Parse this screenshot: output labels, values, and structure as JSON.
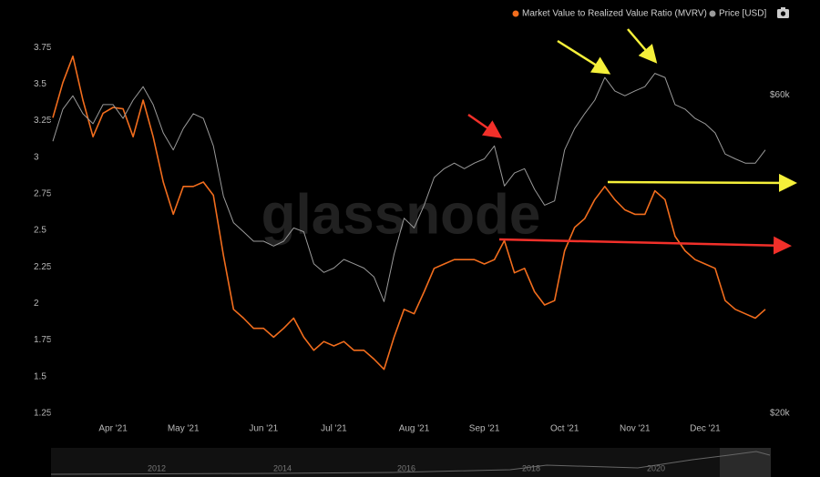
{
  "chart_data": {
    "type": "line",
    "watermark": "glassnode",
    "categories": [
      null,
      null,
      null,
      null,
      null,
      null,
      "Apr '21",
      null,
      null,
      null,
      null,
      null,
      null,
      "May '21",
      null,
      null,
      null,
      null,
      null,
      null,
      null,
      "Jun '21",
      null,
      null,
      null,
      null,
      null,
      null,
      "Jul '21",
      null,
      null,
      null,
      null,
      null,
      null,
      null,
      "Aug '21",
      null,
      null,
      null,
      null,
      null,
      null,
      "Sep '21",
      null,
      null,
      null,
      null,
      null,
      null,
      null,
      "Oct '21",
      null,
      null,
      null,
      null,
      null,
      null,
      "Nov '21",
      null,
      null,
      null,
      null,
      null,
      null,
      "Dec '21",
      null,
      null,
      null,
      null,
      null,
      null
    ],
    "series": [
      {
        "name": "Market Value to Realized Value Ratio (MVRV)",
        "color": "#f26d1d",
        "axis": "y",
        "values": [
          3.27,
          3.51,
          3.69,
          3.39,
          3.14,
          3.3,
          3.34,
          3.33,
          3.14,
          3.39,
          3.14,
          2.83,
          2.61,
          2.8,
          2.8,
          2.83,
          2.74,
          2.33,
          1.96,
          1.9,
          1.83,
          1.83,
          1.77,
          1.83,
          1.9,
          1.77,
          1.68,
          1.74,
          1.71,
          1.74,
          1.68,
          1.68,
          1.62,
          1.55,
          1.77,
          1.96,
          1.93,
          2.08,
          2.24,
          2.27,
          2.3,
          2.3,
          2.3,
          2.27,
          2.3,
          2.43,
          2.21,
          2.24,
          2.08,
          1.99,
          2.02,
          2.36,
          2.52,
          2.58,
          2.71,
          2.8,
          2.71,
          2.64,
          2.61,
          2.61,
          2.77,
          2.71,
          2.46,
          2.36,
          2.3,
          2.27,
          2.24,
          2.02,
          1.96,
          1.93,
          1.9,
          1.96
        ]
      },
      {
        "name": "Price [USD]",
        "color": "#9a9a9a",
        "axis": "y2",
        "values": [
          51100,
          57100,
          59800,
          56200,
          54300,
          58000,
          58000,
          55300,
          58900,
          61700,
          58000,
          52600,
          49600,
          53400,
          56200,
          55300,
          50300,
          42300,
          38600,
          37400,
          36200,
          36200,
          35600,
          36200,
          37900,
          37400,
          33500,
          32500,
          33000,
          34000,
          33500,
          33000,
          32000,
          29400,
          34600,
          39200,
          37900,
          41000,
          45100,
          46500,
          47400,
          46500,
          47400,
          48100,
          50300,
          43800,
          45800,
          46500,
          43300,
          41000,
          41600,
          49600,
          53400,
          56200,
          58900,
          63700,
          60800,
          59800,
          60800,
          61700,
          64600,
          63700,
          58000,
          57100,
          55300,
          54300,
          52600,
          48900,
          48100,
          47400,
          47400,
          49600
        ]
      }
    ],
    "ylim": [
      1.2,
      3.9
    ],
    "yticks": [
      1.25,
      1.5,
      1.75,
      2,
      2.25,
      2.5,
      2.75,
      3,
      3.25,
      3.5,
      3.75
    ],
    "y2lim": [
      19500,
      76200
    ],
    "y2_log": true,
    "y2ticks": [
      {
        "value": 20000,
        "label": "$20k"
      },
      {
        "value": 60000,
        "label": "$60k"
      }
    ],
    "navigator_labels": [
      "2012",
      "2014",
      "2016",
      "2018",
      "2020"
    ]
  }
}
